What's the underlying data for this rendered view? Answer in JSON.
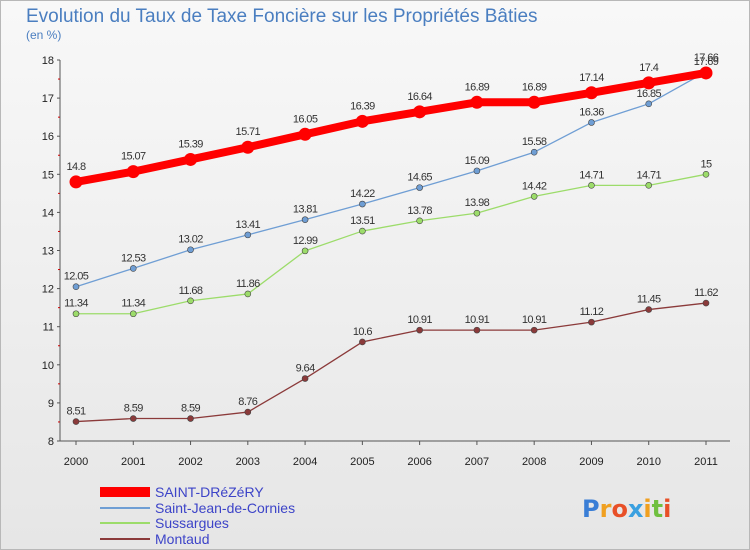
{
  "chart_data": {
    "type": "line",
    "title": "Evolution du Taux de Taxe Foncière sur les Propriétés Bâties",
    "subtitle": "(en %)",
    "categories": [
      "2000",
      "2001",
      "2002",
      "2003",
      "2004",
      "2005",
      "2006",
      "2007",
      "2008",
      "2009",
      "2010",
      "2011"
    ],
    "ylim": [
      8,
      18
    ],
    "yticks": [
      "8",
      "9",
      "10",
      "11",
      "12",
      "13",
      "14",
      "15",
      "16",
      "17",
      "18"
    ],
    "grid": false,
    "legend_position": "bottom-left",
    "series": [
      {
        "name": "SAINT-DRéZéRY",
        "color": "#ff0000",
        "values": [
          14.8,
          15.07,
          15.39,
          15.71,
          16.05,
          16.39,
          16.64,
          16.89,
          16.89,
          17.14,
          17.4,
          17.66
        ],
        "labels": [
          "14.8",
          "15.07",
          "15.39",
          "15.71",
          "16.05",
          "16.39",
          "16.64",
          "16.89",
          "16.89",
          "17.14",
          "17.4",
          "17.66"
        ]
      },
      {
        "name": "Saint-Jean-de-Cornies",
        "color": "#6f9ed4",
        "values": [
          12.05,
          12.53,
          13.02,
          13.41,
          13.81,
          14.22,
          14.65,
          15.09,
          15.58,
          16.36,
          16.85,
          17.69
        ],
        "labels": [
          "12.05",
          "12.53",
          "13.02",
          "13.41",
          "13.81",
          "14.22",
          "14.65",
          "15.09",
          "15.58",
          "16.36",
          "16.85",
          "17.69"
        ]
      },
      {
        "name": "Sussargues",
        "color": "#9cdc6a",
        "values": [
          11.34,
          11.34,
          11.68,
          11.86,
          12.99,
          13.51,
          13.78,
          13.98,
          14.42,
          14.71,
          14.71,
          15
        ],
        "labels": [
          "11.34",
          "11.34",
          "11.68",
          "11.86",
          "12.99",
          "13.51",
          "13.78",
          "13.98",
          "14.42",
          "14.71",
          "14.71",
          "15"
        ]
      },
      {
        "name": "Montaud",
        "color": "#8b3a3a",
        "values": [
          8.51,
          8.59,
          8.59,
          8.76,
          9.64,
          10.6,
          10.91,
          10.91,
          10.91,
          11.12,
          11.45,
          11.62
        ],
        "labels": [
          "8.51",
          "8.59",
          "8.59",
          "8.76",
          "9.64",
          "10.6",
          "10.91",
          "10.91",
          "10.91",
          "11.12",
          "11.45",
          "11.62"
        ]
      }
    ]
  },
  "logo": {
    "text": "Proxiti"
  }
}
